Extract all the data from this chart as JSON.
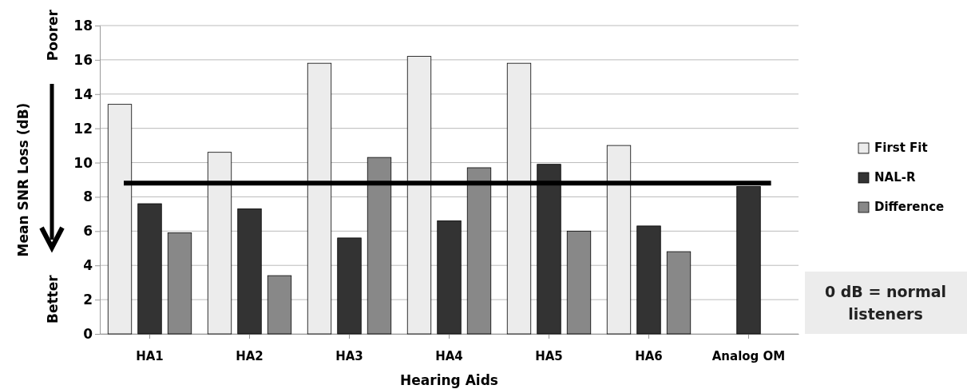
{
  "chart_data": {
    "type": "bar",
    "xlabel": "Hearing Aids",
    "ylabel": "Mean SNR Loss (dB)",
    "categories": [
      "HA1",
      "HA2",
      "HA3",
      "HA4",
      "HA5",
      "HA6",
      "Analog OM"
    ],
    "series": [
      {
        "name": "First Fit",
        "color": "#ececec",
        "values": [
          13.4,
          10.6,
          15.8,
          16.2,
          15.8,
          11.0,
          null
        ]
      },
      {
        "name": "NAL-R",
        "color": "#333333",
        "values": [
          7.6,
          7.3,
          5.6,
          6.6,
          9.9,
          6.3,
          8.6
        ]
      },
      {
        "name": "Difference",
        "color": "#888888",
        "values": [
          5.9,
          3.4,
          10.3,
          9.7,
          6.0,
          4.8,
          null
        ]
      }
    ],
    "ylim": [
      0,
      18
    ],
    "yticks": [
      0,
      2,
      4,
      6,
      8,
      10,
      12,
      14,
      16,
      18
    ],
    "grid": "y",
    "legend": "right",
    "ref_lines": [
      {
        "axis": "y",
        "value": 8.8,
        "color": "#000000"
      }
    ],
    "annotations": [
      "Poorer",
      "Better",
      "0 dB = normal listeners"
    ]
  }
}
